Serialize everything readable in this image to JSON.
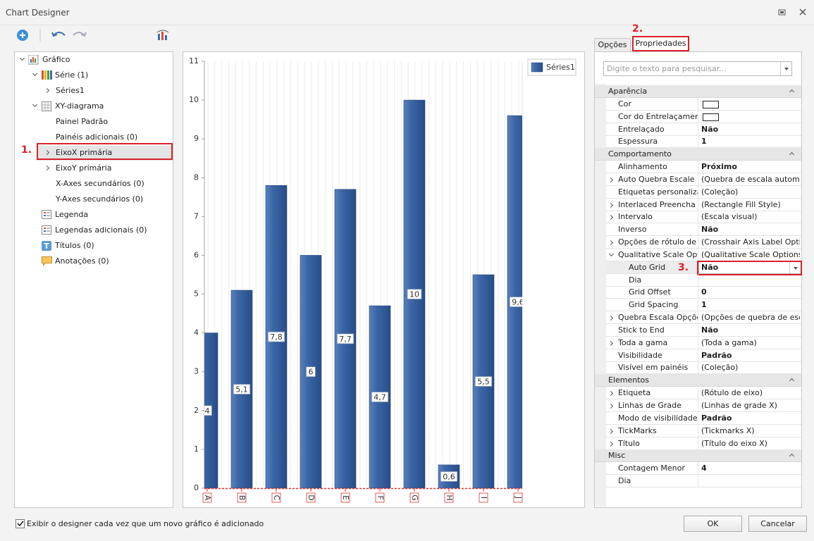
{
  "window": {
    "title": "Chart Designer"
  },
  "tree": {
    "items": [
      {
        "label": "Gráfico",
        "level": 0,
        "expander": "expanded",
        "icon": "chart"
      },
      {
        "label": "Série (1)",
        "level": 1,
        "expander": "expanded",
        "icon": "series"
      },
      {
        "label": "Séries1",
        "level": 2,
        "expander": "collapsed"
      },
      {
        "label": "XY-diagrama",
        "level": 1,
        "expander": "expanded",
        "icon": "grid"
      },
      {
        "label": "Painel Padrão",
        "level": 2
      },
      {
        "label": "Painéis adicionais (0)",
        "level": 2
      },
      {
        "label": "EixoX primária",
        "level": 2,
        "expander": "collapsed",
        "selected": true
      },
      {
        "label": "EixoY primária",
        "level": 2,
        "expander": "collapsed"
      },
      {
        "label": "X-Axes secundários (0)",
        "level": 2
      },
      {
        "label": "Y-Axes secundários (0)",
        "level": 2
      },
      {
        "label": "Legenda",
        "level": 1,
        "icon": "legend"
      },
      {
        "label": "Legendas adicionais (0)",
        "level": 1,
        "icon": "legend"
      },
      {
        "label": "Títulos (0)",
        "level": 1,
        "icon": "titles"
      },
      {
        "label": "Anotações (0)",
        "level": 1,
        "icon": "annotations"
      }
    ]
  },
  "annotations": [
    "1.",
    "2.",
    "3."
  ],
  "chart_data": {
    "type": "bar",
    "categories": [
      "A",
      "B",
      "C",
      "D",
      "E",
      "F",
      "G",
      "H",
      "I",
      "J"
    ],
    "series": [
      {
        "name": "Séries1",
        "color": "#34609e",
        "values": [
          4,
          5.1,
          7.8,
          6,
          7.7,
          4.7,
          10,
          0.6,
          5.5,
          9.6
        ],
        "value_labels": [
          "4",
          "5,1",
          "7,8",
          "6",
          "7,7",
          "4,7",
          "10",
          "0,6",
          "5,5",
          "9,6"
        ]
      }
    ],
    "ylim": [
      0,
      11
    ],
    "yticks": [
      0,
      1,
      2,
      3,
      4,
      5,
      6,
      7,
      8,
      9,
      10,
      11
    ],
    "x_grid": true,
    "legend": "top-right"
  },
  "properties": {
    "tabs": [
      "Opções",
      "Propriedades"
    ],
    "active_tab": 1,
    "search_placeholder": "Digite o texto para pesquisar...",
    "groups": [
      {
        "title": "Aparência",
        "rows": [
          {
            "name": "Cor",
            "swatch": true
          },
          {
            "name": "Cor do Entrelaçamento",
            "swatch": true
          },
          {
            "name": "Entrelaçado",
            "value": "Não",
            "bold": true
          },
          {
            "name": "Espessura",
            "value": "1",
            "bold": true
          }
        ]
      },
      {
        "title": "Comportamento",
        "rows": [
          {
            "name": "Alinhamento",
            "value": "Próximo",
            "bold": true
          },
          {
            "name": "Auto Quebra Escale",
            "value": "(Quebra de escala autom...",
            "expander": "collapsed"
          },
          {
            "name": "Etiquetas personalizada",
            "value": "(Coleção)"
          },
          {
            "name": "Interlaced Preencha Es",
            "value": "(Rectangle Fill Style)",
            "expander": "collapsed"
          },
          {
            "name": "Intervalo",
            "value": "(Escala visual)",
            "expander": "collapsed"
          },
          {
            "name": "Inverso",
            "value": "Não",
            "bold": true
          },
          {
            "name": "Opções de rótulo de eix",
            "value": "(Crosshair Axis Label Opti...",
            "expander": "collapsed"
          },
          {
            "name": "Qualitative Scale Option",
            "value": "(Qualitative Scale Options)",
            "expander": "expanded"
          },
          {
            "name": "Auto Grid",
            "value": "Não",
            "bold": true,
            "level": 1,
            "selected": true
          },
          {
            "name": "Dia",
            "level": 1
          },
          {
            "name": "Grid Offset",
            "value": "0",
            "bold": true,
            "level": 1
          },
          {
            "name": "Grid Spacing",
            "value": "1",
            "bold": true,
            "level": 1
          },
          {
            "name": "Quebra Escala Opções",
            "value": "(Opções de quebra de esc...",
            "expander": "collapsed"
          },
          {
            "name": "Stick to End",
            "value": "Não",
            "bold": true
          },
          {
            "name": "Toda a gama",
            "value": "(Toda a gama)",
            "expander": "collapsed"
          },
          {
            "name": "Visibilidade",
            "value": "Padrão",
            "bold": true
          },
          {
            "name": "Visível em painéis",
            "value": "(Coleção)"
          }
        ]
      },
      {
        "title": "Elementos",
        "rows": [
          {
            "name": "Etiqueta",
            "value": "(Rótulo de eixo)",
            "expander": "collapsed"
          },
          {
            "name": "Linhas de Grade",
            "value": "(Linhas de grade X)",
            "expander": "collapsed"
          },
          {
            "name": "Modo de visibilidade do",
            "value": "Padrão",
            "bold": true
          },
          {
            "name": "TickMarks",
            "value": "(Tickmarks X)",
            "expander": "collapsed"
          },
          {
            "name": "Título",
            "value": "(Título do eixo X)",
            "expander": "collapsed"
          }
        ]
      },
      {
        "title": "Misc",
        "rows": [
          {
            "name": "Contagem Menor",
            "value": "4",
            "bold": true
          },
          {
            "name": "Dia"
          }
        ]
      }
    ]
  },
  "footer": {
    "checkbox_label": "Exibir o designer cada vez que um novo gráfico é adicionado",
    "checked": true,
    "buttons": [
      "OK",
      "Cancelar"
    ]
  }
}
